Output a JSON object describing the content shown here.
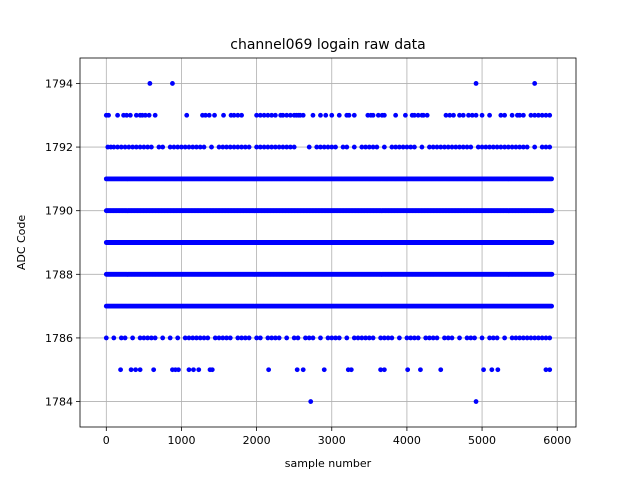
{
  "chart_data": {
    "type": "scatter",
    "title": "channel069 logain raw data",
    "xlabel": "sample number",
    "ylabel": "ADC Code",
    "xlim": [
      -350,
      6250
    ],
    "ylim": [
      1783.2,
      1794.8
    ],
    "xticks": [
      0,
      1000,
      2000,
      3000,
      4000,
      5000,
      6000
    ],
    "yticks": [
      1784,
      1786,
      1788,
      1790,
      1792,
      1794
    ],
    "grid": true,
    "marker_color": "#0000ff",
    "series": [
      {
        "points": [
          {
            "code": 1794,
            "samples": [
              580,
              880,
              4920,
              5700
            ]
          },
          {
            "code": 1793,
            "samples": [
              0,
              30,
              150,
              230,
              270,
              320,
              400,
              450,
              480,
              520,
              570,
              650,
              1070,
              1280,
              1320,
              1370,
              1440,
              1560,
              1660,
              1700,
              1750,
              1800,
              2000,
              2050,
              2100,
              2150,
              2200,
              2250,
              2320,
              2350,
              2400,
              2450,
              2500,
              2530,
              2560,
              2580,
              2620,
              2750,
              2850,
              2920,
              3000,
              3100,
              3200,
              3230,
              3300,
              3480,
              3520,
              3550,
              3620,
              3670,
              3700,
              3850,
              3980,
              4070,
              4100,
              4150,
              4200,
              4220,
              4270,
              4520,
              4570,
              4620,
              4700,
              4750,
              4820,
              4870,
              4920,
              5000,
              5100,
              5250,
              5300,
              5400,
              5470,
              5500,
              5550,
              5650,
              5700,
              5750,
              5800,
              5850,
              5900
            ]
          },
          {
            "code": 1792,
            "samples": [
              20,
              60,
              100,
              150,
              200,
              250,
              300,
              350,
              400,
              450,
              500,
              550,
              600,
              700,
              750,
              850,
              900,
              950,
              1000,
              1050,
              1100,
              1150,
              1200,
              1250,
              1300,
              1400,
              1500,
              1550,
              1600,
              1650,
              1700,
              1750,
              1800,
              1850,
              1900,
              2000,
              2050,
              2100,
              2150,
              2200,
              2250,
              2300,
              2350,
              2400,
              2450,
              2500,
              2700,
              2800,
              2850,
              2900,
              2950,
              3000,
              3050,
              3150,
              3200,
              3300,
              3400,
              3450,
              3500,
              3550,
              3600,
              3700,
              3800,
              3850,
              3900,
              3950,
              4000,
              4050,
              4100,
              4200,
              4300,
              4350,
              4400,
              4450,
              4500,
              4550,
              4600,
              4650,
              4700,
              4750,
              4800,
              4850,
              4950,
              5000,
              5050,
              5100,
              5150,
              5200,
              5250,
              5300,
              5350,
              5400,
              5450,
              5500,
              5550,
              5600,
              5700,
              5800,
              5850,
              5900
            ]
          },
          {
            "code": 1791,
            "range": [
              0,
              5930
            ],
            "step": 15
          },
          {
            "code": 1790,
            "range": [
              0,
              5930
            ],
            "step": 10
          },
          {
            "code": 1789,
            "range": [
              0,
              5930
            ],
            "step": 5
          },
          {
            "code": 1788,
            "range": [
              0,
              5930
            ],
            "step": 10
          },
          {
            "code": 1787,
            "range": [
              0,
              5930
            ],
            "step": 15
          },
          {
            "code": 1786,
            "samples": [
              0,
              100,
              200,
              250,
              350,
              450,
              500,
              550,
              600,
              650,
              750,
              850,
              950,
              1050,
              1100,
              1150,
              1200,
              1250,
              1300,
              1350,
              1450,
              1500,
              1550,
              1600,
              1650,
              1750,
              1800,
              1850,
              1900,
              2000,
              2050,
              2150,
              2200,
              2250,
              2300,
              2400,
              2500,
              2550,
              2650,
              2700,
              2750,
              2850,
              2950,
              3000,
              3050,
              3100,
              3200,
              3300,
              3350,
              3400,
              3450,
              3500,
              3550,
              3650,
              3700,
              3750,
              3800,
              3900,
              4000,
              4050,
              4100,
              4150,
              4250,
              4300,
              4350,
              4400,
              4500,
              4550,
              4600,
              4700,
              4800,
              4850,
              4900,
              5000,
              5100,
              5150,
              5200,
              5300,
              5400,
              5450,
              5500,
              5550,
              5600,
              5650,
              5700,
              5750,
              5800,
              5850,
              5900
            ]
          },
          {
            "code": 1785,
            "samples": [
              190,
              330,
              390,
              450,
              630,
              880,
              920,
              960,
              1100,
              1160,
              1230,
              1380,
              1410,
              2160,
              2540,
              2620,
              2900,
              3220,
              3260,
              3650,
              3700,
              4010,
              4180,
              4450,
              5020,
              5130,
              5210,
              5850,
              5900
            ]
          },
          {
            "code": 1784,
            "samples": [
              2720,
              4920
            ]
          }
        ]
      }
    ]
  }
}
